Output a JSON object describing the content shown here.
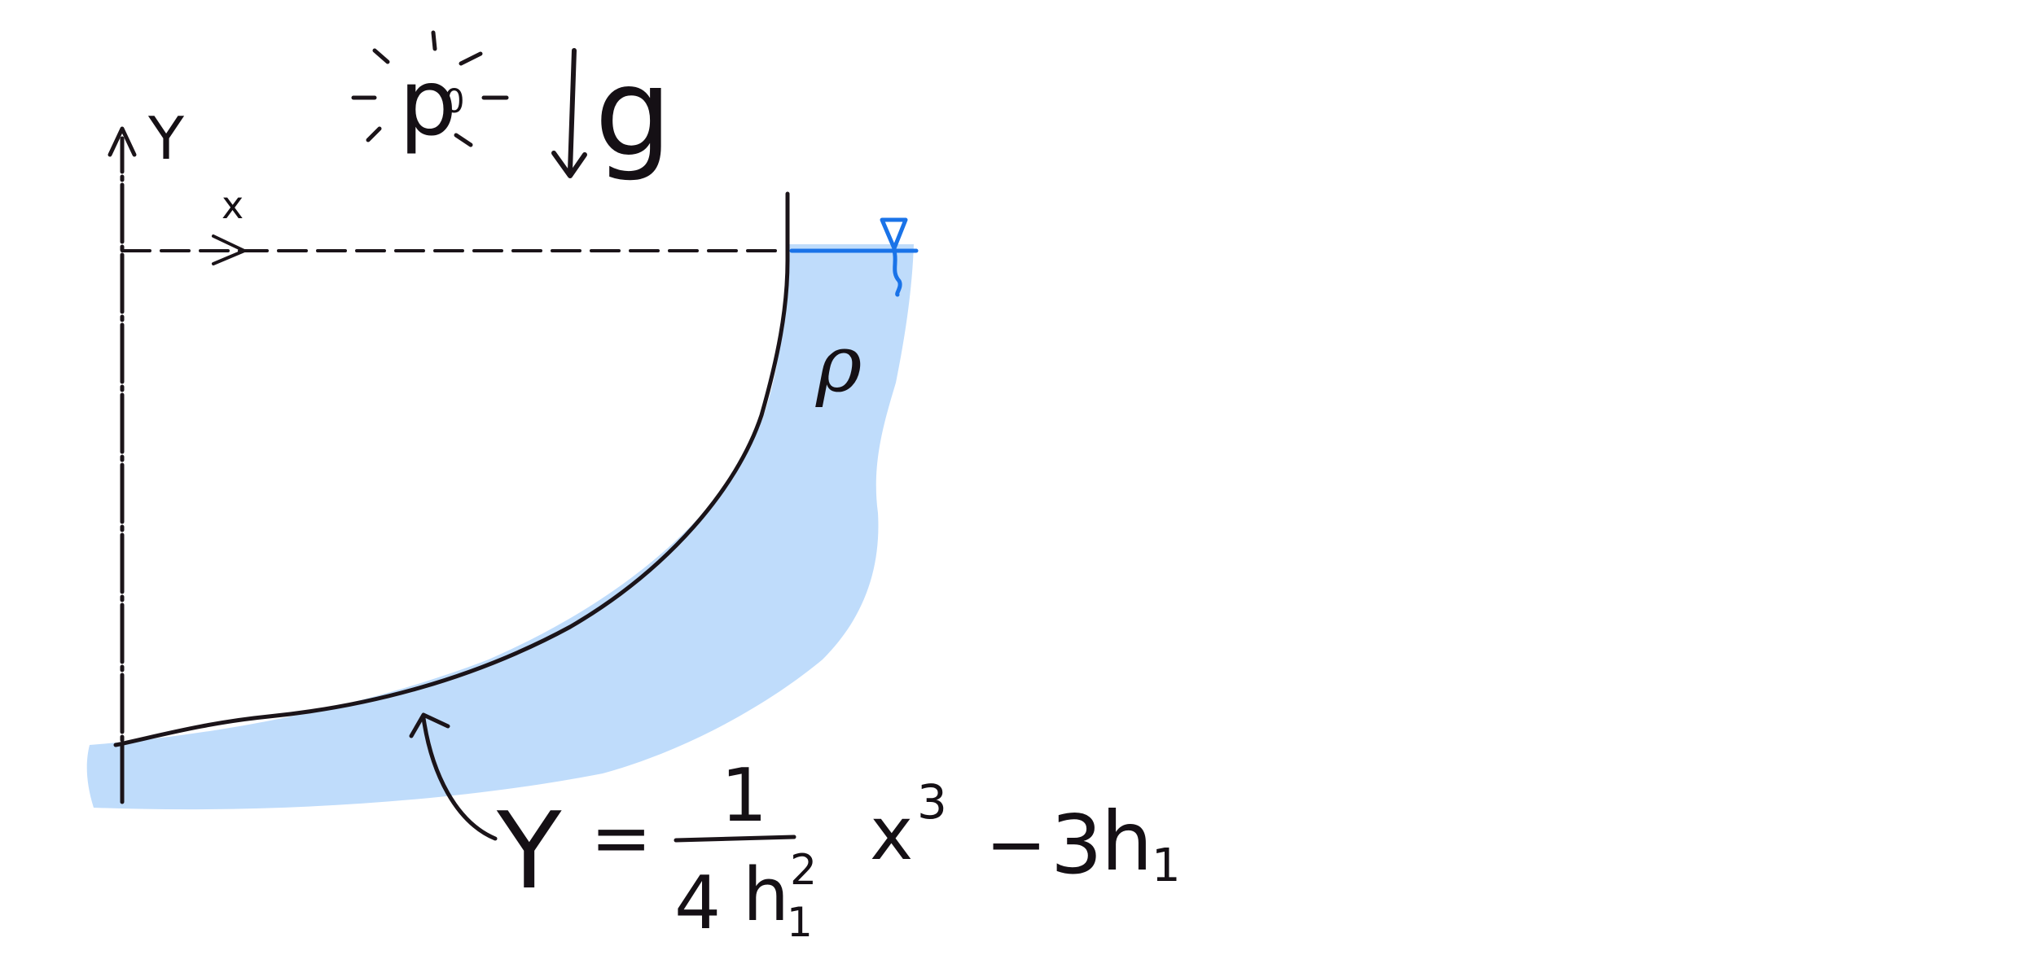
{
  "labels": {
    "y_axis": "Y",
    "x_axis": "x",
    "ambient_pressure": "p",
    "ambient_pressure_sub": "0",
    "gravity": "g",
    "density": "ρ",
    "equation": {
      "lhs": "Y",
      "equals": "=",
      "numerator": "1",
      "denominator_coef": "4",
      "denominator_var": "h",
      "denominator_sub": "1",
      "denominator_exp": "2",
      "x_var": "x",
      "x_exp": "3",
      "minus": "−",
      "const_coef": "3",
      "const_var": "h",
      "const_sub": "1"
    }
  },
  "colors": {
    "ink": "#1b1419",
    "water": "#bfdcfb",
    "free_surface": "#1a73e8"
  },
  "icons": {
    "free_surface_marker": "inverted-triangle-water-level-icon",
    "sun_rays": "sun-rays-icon",
    "gravity_arrow": "down-arrow-icon"
  }
}
